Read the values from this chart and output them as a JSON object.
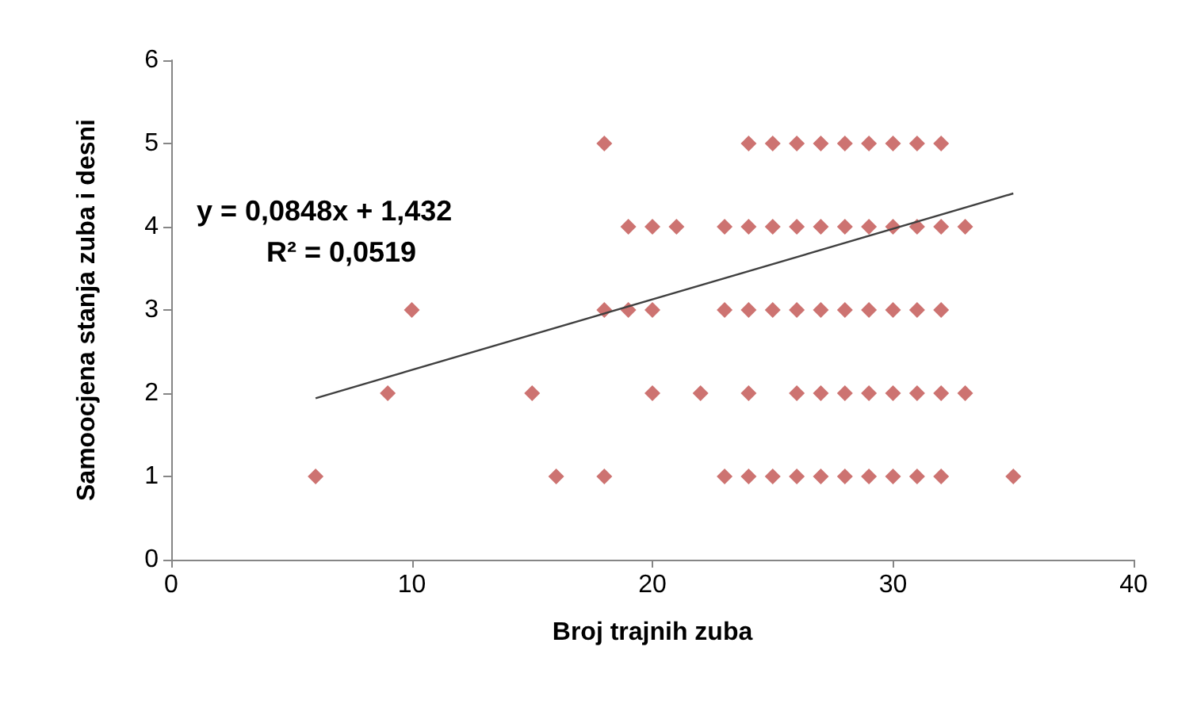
{
  "chart_data": {
    "type": "scatter",
    "xlabel": "Broj trajnih zuba",
    "ylabel": "Samoocjena stanja zuba i desni",
    "annotations": [
      "y = 0,0848x + 1,432",
      "R² = 0,0519"
    ],
    "series": [
      {
        "color": "#c0504d",
        "marker": "diamond",
        "x": [
          18,
          24,
          25,
          26,
          27,
          28,
          29,
          30,
          31,
          32,
          19,
          20,
          21,
          23,
          24,
          25,
          26,
          27,
          28,
          29,
          30,
          31,
          32,
          33,
          10,
          18,
          19,
          20,
          23,
          24,
          25,
          26,
          27,
          28,
          29,
          30,
          31,
          32,
          9,
          15,
          20,
          22,
          24,
          26,
          27,
          28,
          29,
          30,
          31,
          32,
          33,
          6,
          16,
          18,
          23,
          24,
          25,
          26,
          27,
          28,
          29,
          30,
          31,
          32,
          35
        ],
        "values": [
          5,
          5,
          5,
          5,
          5,
          5,
          5,
          5,
          5,
          5,
          4,
          4,
          4,
          4,
          4,
          4,
          4,
          4,
          4,
          4,
          4,
          4,
          4,
          4,
          3,
          3,
          3,
          3,
          3,
          3,
          3,
          3,
          3,
          3,
          3,
          3,
          3,
          3,
          2,
          2,
          2,
          2,
          2,
          2,
          2,
          2,
          2,
          2,
          2,
          2,
          2,
          1,
          1,
          1,
          1,
          1,
          1,
          1,
          1,
          1,
          1,
          1,
          1,
          1,
          1
        ]
      },
      {
        "type": "line",
        "color": "#404040",
        "marker": "none",
        "x": [
          6,
          35
        ],
        "values": [
          1.94,
          4.4
        ]
      }
    ],
    "xlim": [
      0,
      40
    ],
    "xticks": [
      0,
      10,
      20,
      30,
      40
    ],
    "ylim": [
      0,
      6
    ],
    "yticks": [
      0,
      1,
      2,
      3,
      4,
      5,
      6
    ],
    "grid": false
  }
}
